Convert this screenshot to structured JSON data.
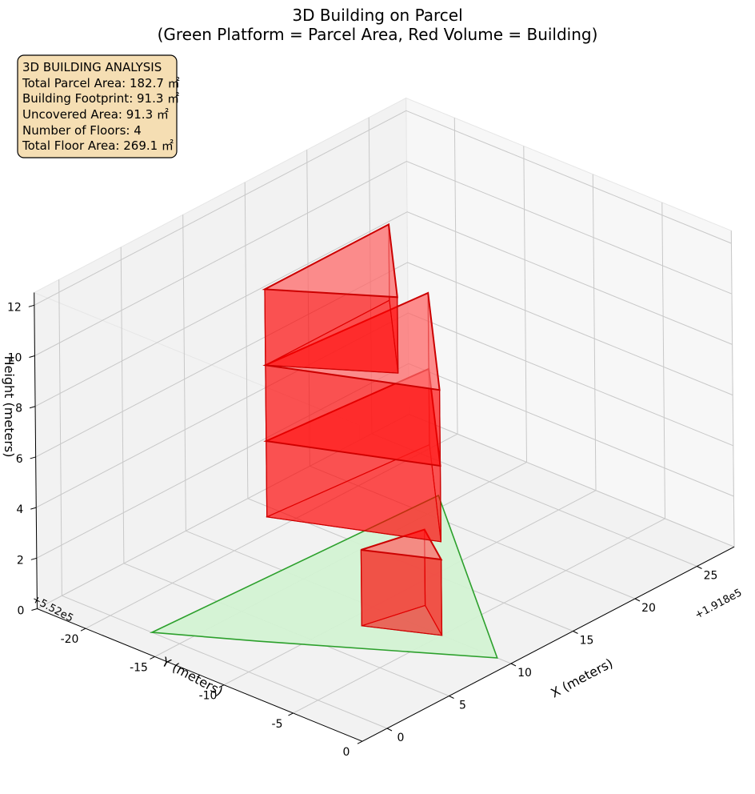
{
  "chart_data": {
    "type": "3d-polygons",
    "title": [
      "3D Building on Parcel",
      "(Green Platform = Parcel Area, Red Volume = Building)"
    ],
    "xlabel": "X (meters)",
    "ylabel": "Y (meters)",
    "zlabel": "Height (meters)",
    "x_offset_label": "+1.918e5",
    "y_offset_label": "+5.52e5",
    "x_ticks": [
      "0",
      "5",
      "10",
      "15",
      "20",
      "25"
    ],
    "y_ticks": [
      "-20",
      "-15",
      "-10",
      "-5",
      "0"
    ],
    "z_ticks": [
      "0",
      "2",
      "4",
      "6",
      "8",
      "10",
      "12"
    ],
    "xlim": [
      -2,
      28
    ],
    "ylim": [
      -23.5,
      0
    ],
    "zlim": [
      0,
      12.5
    ],
    "grid": true,
    "info_box": {
      "lines": [
        "3D BUILDING ANALYSIS",
        "Total Parcel Area: 182.7 ㎡",
        "Building Footprint: 91.3 ㎡",
        "Uncovered Area: 91.3 ㎡",
        "Number of Floors: 4",
        "Total Floor Area: 269.1 ㎡"
      ]
    },
    "parcel": {
      "name": "Parcel Area",
      "color": "#2ca02c",
      "fill": "#d3f2d3",
      "polygon_xy": [
        [
          0,
          -17
        ],
        [
          22,
          -16
        ],
        [
          10,
          -1
        ],
        [
          3,
          -12
        ]
      ]
    },
    "building": {
      "name": "Building",
      "color": "#ff0000",
      "edge": "#cc0000",
      "floors": [
        {
          "z_bottom": 0,
          "z_top": 3.0,
          "polygon_xy": [
            [
              8,
              -9
            ],
            [
              12,
              -8
            ],
            [
              10,
              -5
            ]
          ]
        },
        {
          "z_bottom": 3.7,
          "z_top": 6.7,
          "polygon_xy": [
            [
              6,
              -14
            ],
            [
              18,
              -13
            ],
            [
              10,
              -5
            ]
          ]
        },
        {
          "z_bottom": 6.7,
          "z_top": 9.7,
          "polygon_xy": [
            [
              6,
              -14
            ],
            [
              18,
              -13
            ],
            [
              10,
              -5
            ]
          ]
        },
        {
          "z_bottom": 9.7,
          "z_top": 12.7,
          "polygon_xy": [
            [
              6,
              -14
            ],
            [
              16,
              -14
            ],
            [
              10,
              -8
            ]
          ]
        }
      ]
    }
  }
}
